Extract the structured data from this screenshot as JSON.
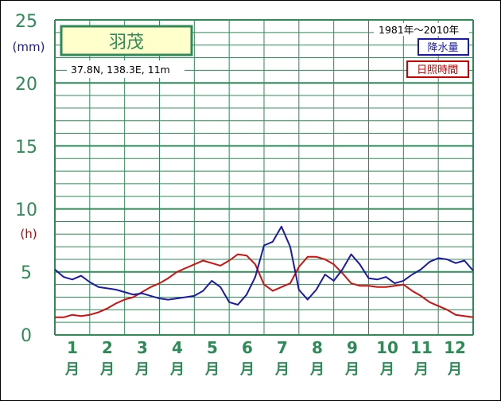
{
  "colors": {
    "grid": "#2e8b57",
    "precip": "#1a1aa6",
    "sunshine": "#cc1111",
    "title_box_fill": "#ffffcc"
  },
  "station": {
    "name": "羽茂",
    "coords": "37.8N,  138.3E,  11m"
  },
  "period": "1981年～2010年",
  "legend": {
    "precip": "降水量",
    "sunshine": "日照時間"
  },
  "units": {
    "mm": "(mm)",
    "h": "(h)"
  },
  "yticks": [
    "0",
    "5",
    "10",
    "15",
    "20",
    "25"
  ],
  "months": [
    {
      "num": "1",
      "kanji": "月"
    },
    {
      "num": "2",
      "kanji": "月"
    },
    {
      "num": "3",
      "kanji": "月"
    },
    {
      "num": "4",
      "kanji": "月"
    },
    {
      "num": "5",
      "kanji": "月"
    },
    {
      "num": "6",
      "kanji": "月"
    },
    {
      "num": "7",
      "kanji": "月"
    },
    {
      "num": "8",
      "kanji": "月"
    },
    {
      "num": "9",
      "kanji": "月"
    },
    {
      "num": "10",
      "kanji": "月"
    },
    {
      "num": "11",
      "kanji": "月"
    },
    {
      "num": "12",
      "kanji": "月"
    }
  ],
  "chart_data": {
    "type": "line",
    "x_range": [
      0.5,
      12.5
    ],
    "ylim": [
      0,
      25
    ],
    "grid": true,
    "legend_position": "top-right",
    "series": [
      {
        "name": "降水量",
        "color": "#1a1aa6",
        "x": [
          0.5,
          0.75,
          1.0,
          1.25,
          1.5,
          1.75,
          2.0,
          2.25,
          2.5,
          2.75,
          3.0,
          3.25,
          3.5,
          3.75,
          4.0,
          4.25,
          4.5,
          4.75,
          5.0,
          5.25,
          5.5,
          5.75,
          6.0,
          6.25,
          6.5,
          6.75,
          7.0,
          7.25,
          7.5,
          7.75,
          8.0,
          8.25,
          8.5,
          8.75,
          9.0,
          9.25,
          9.5,
          9.75,
          10.0,
          10.25,
          10.5,
          10.75,
          11.0,
          11.25,
          11.5,
          11.75,
          12.0,
          12.25,
          12.5
        ],
        "y": [
          5.2,
          4.6,
          4.4,
          4.7,
          4.2,
          3.8,
          3.7,
          3.6,
          3.4,
          3.2,
          3.3,
          3.1,
          2.9,
          2.8,
          2.9,
          3.0,
          3.1,
          3.5,
          4.3,
          3.8,
          2.6,
          2.4,
          3.2,
          4.6,
          7.1,
          7.4,
          8.6,
          7.0,
          3.6,
          2.8,
          3.6,
          4.8,
          4.3,
          5.2,
          6.4,
          5.6,
          4.5,
          4.4,
          4.6,
          4.1,
          4.3,
          4.8,
          5.2,
          5.8,
          6.1,
          6.0,
          5.7,
          5.9,
          5.1
        ]
      },
      {
        "name": "日照時間",
        "color": "#cc1111",
        "x": [
          0.5,
          0.75,
          1.0,
          1.25,
          1.5,
          1.75,
          2.0,
          2.25,
          2.5,
          2.75,
          3.0,
          3.25,
          3.5,
          3.75,
          4.0,
          4.25,
          4.5,
          4.75,
          5.0,
          5.25,
          5.5,
          5.75,
          6.0,
          6.25,
          6.5,
          6.75,
          7.0,
          7.25,
          7.5,
          7.75,
          8.0,
          8.25,
          8.5,
          8.75,
          9.0,
          9.25,
          9.5,
          9.75,
          10.0,
          10.25,
          10.5,
          10.75,
          11.0,
          11.25,
          11.5,
          11.75,
          12.0,
          12.25,
          12.5
        ],
        "y": [
          1.4,
          1.4,
          1.6,
          1.5,
          1.6,
          1.8,
          2.1,
          2.5,
          2.8,
          3.0,
          3.4,
          3.8,
          4.1,
          4.5,
          5.0,
          5.3,
          5.6,
          5.9,
          5.7,
          5.5,
          5.9,
          6.4,
          6.3,
          5.6,
          4.0,
          3.5,
          3.8,
          4.1,
          5.4,
          6.2,
          6.2,
          6.0,
          5.6,
          4.9,
          4.1,
          3.9,
          3.9,
          3.8,
          3.8,
          3.9,
          4.0,
          3.5,
          3.1,
          2.6,
          2.3,
          2.0,
          1.6,
          1.5,
          1.4
        ]
      }
    ]
  }
}
